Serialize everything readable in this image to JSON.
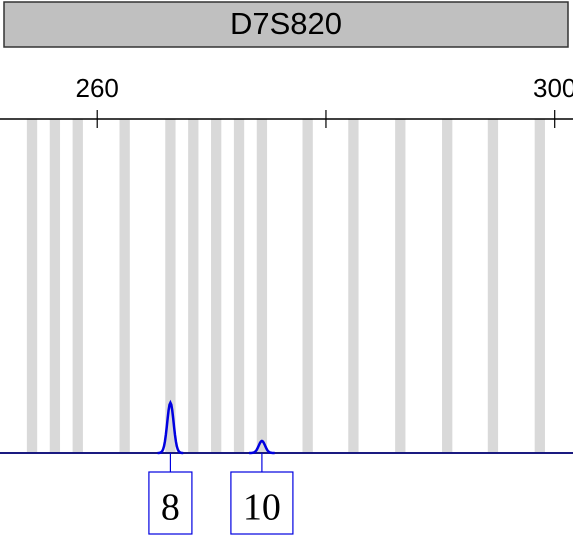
{
  "chart_data": {
    "type": "electropherogram",
    "title": "D7S820",
    "xlim": [
      251.5,
      301.6
    ],
    "xticks": [
      260,
      {
        "value": 280,
        "label": null
      },
      300
    ],
    "ylim": [
      0,
      100
    ],
    "allele_bins": [
      254.3,
      256.3,
      258.3,
      262.4,
      266.4,
      268.4,
      270.4,
      272.4,
      274.4,
      278.4,
      282.4,
      286.5,
      290.6,
      294.6,
      298.7
    ],
    "bin_width": 0.9,
    "bin_color": "#d9d9d9",
    "trace_color": "#0000e0",
    "peaks": [
      {
        "x": 266.4,
        "height": 15,
        "label": "8"
      },
      {
        "x": 274.4,
        "height": 3.6,
        "label": "10"
      }
    ]
  }
}
